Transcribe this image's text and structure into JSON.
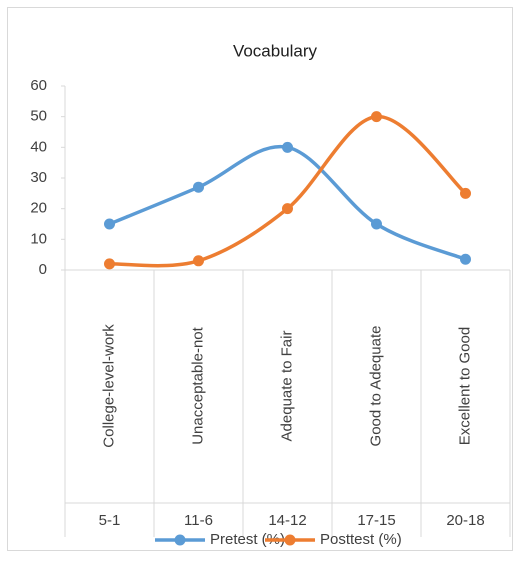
{
  "chart_data": {
    "type": "line",
    "title": "Vocabulary",
    "categories": [
      "College-level-work",
      "Unacceptable-not",
      "Adequate to Fair",
      "Good to Adequate",
      "Excellent to Good"
    ],
    "category_groups": [
      "5-1",
      "11-6",
      "14-12",
      "17-15",
      "20-18"
    ],
    "series": [
      {
        "name": "Pretest (%)",
        "color": "#5b9bd5",
        "values": [
          15,
          27,
          40,
          15,
          3.5
        ]
      },
      {
        "name": "Posttest (%)",
        "color": "#ed7d31",
        "values": [
          2,
          3,
          20,
          50,
          25
        ]
      }
    ],
    "ylim": [
      0,
      60
    ],
    "yticks": [
      0,
      10,
      20,
      30,
      40,
      50,
      60
    ],
    "smooth": true,
    "legend": "bottom"
  }
}
